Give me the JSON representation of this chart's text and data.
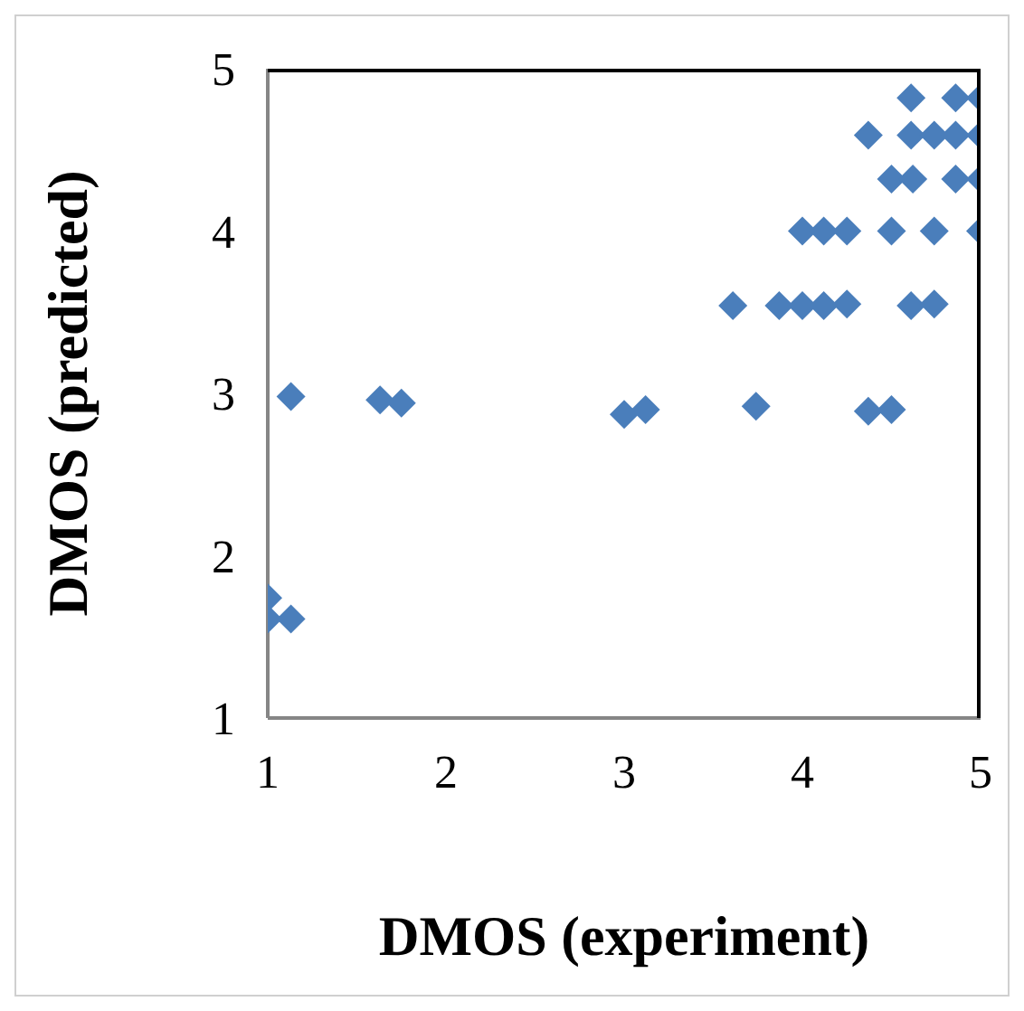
{
  "chart_data": {
    "type": "scatter",
    "xlabel": "DMOS (experiment)",
    "ylabel": "DMOS (predicted)",
    "marker": "diamond",
    "grid": false,
    "legend": false,
    "x": [
      1.0,
      1.0,
      1.13,
      1.13,
      1.63,
      1.75,
      3.0,
      3.12,
      3.74,
      4.37,
      4.5,
      3.61,
      3.87,
      4.0,
      4.12,
      4.25,
      4.61,
      4.74,
      4.0,
      4.12,
      4.25,
      4.5,
      4.74,
      5.0,
      4.5,
      4.62,
      4.86,
      5.0,
      4.37,
      4.61,
      4.74,
      4.86,
      5.0,
      4.61,
      4.86,
      5.0
    ],
    "series": [
      {
        "color": "#4a7ebb",
        "values": [
          1.74,
          1.61,
          1.61,
          2.98,
          2.96,
          2.94,
          2.87,
          2.9,
          2.92,
          2.89,
          2.9,
          3.54,
          3.54,
          3.54,
          3.54,
          3.55,
          3.54,
          3.55,
          4.0,
          4.0,
          4.0,
          4.0,
          4.0,
          4.0,
          4.32,
          4.32,
          4.32,
          4.32,
          4.59,
          4.59,
          4.59,
          4.59,
          4.59,
          4.82,
          4.82,
          4.82
        ]
      }
    ],
    "xlim": [
      1,
      5
    ],
    "xticks": [
      1,
      2,
      3,
      4,
      5
    ],
    "ylim": [
      1,
      5
    ],
    "yticks": [
      1,
      2,
      3,
      4,
      5
    ]
  }
}
